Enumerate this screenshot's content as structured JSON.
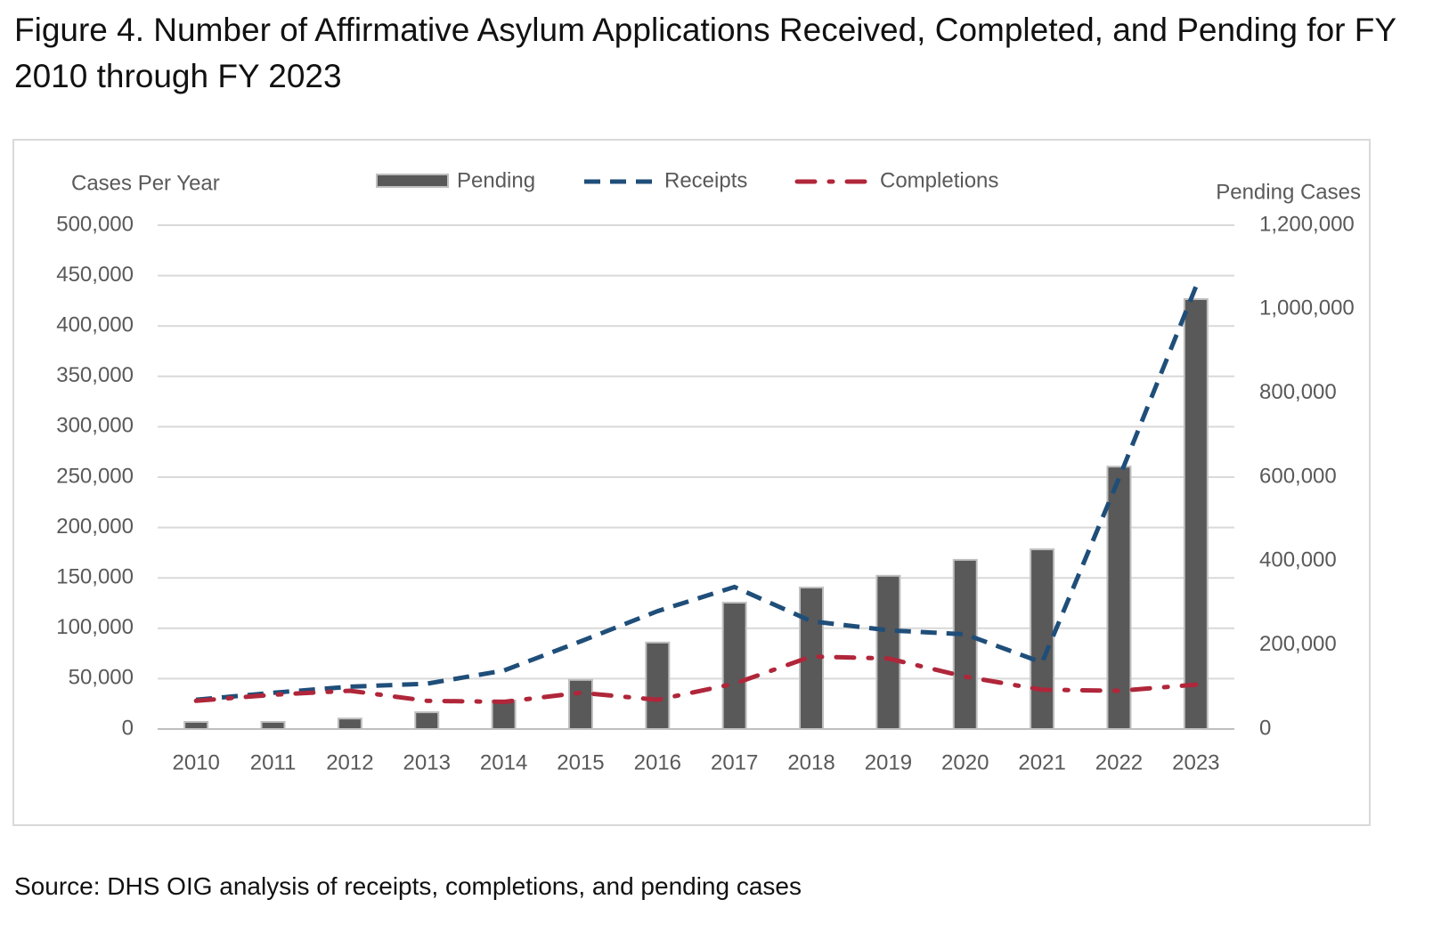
{
  "chart_data": {
    "type": "combo",
    "title": "Figure 4. Number of Affirmative Asylum Applications Received, Completed, and Pending for FY 2010 through FY 2023",
    "y_label": "Cases Per Year",
    "y2_label": "Pending Cases",
    "source": "Source: DHS OIG analysis of receipts, completions, and pending cases",
    "categories": [
      "2010",
      "2011",
      "2012",
      "2013",
      "2014",
      "2015",
      "2016",
      "2017",
      "2018",
      "2019",
      "2020",
      "2021",
      "2022",
      "2023"
    ],
    "series": [
      {
        "name": "Pending",
        "type": "bar",
        "axis": "y2",
        "color": "#595959",
        "values": [
          17000,
          17000,
          25000,
          40000,
          68000,
          117000,
          206000,
          301000,
          337000,
          365000,
          403000,
          428000,
          625000,
          1024000
        ]
      },
      {
        "name": "Receipts",
        "type": "line",
        "line_style": "dashed",
        "color": "#1f4e79",
        "values": [
          29000,
          36000,
          42000,
          45000,
          58000,
          87000,
          117000,
          141000,
          107000,
          98000,
          94000,
          66000,
          249000,
          439000
        ]
      },
      {
        "name": "Completions",
        "type": "line",
        "line_style": "dash-dot",
        "color": "#b0263a",
        "values": [
          28000,
          34000,
          38000,
          28000,
          27000,
          36000,
          29000,
          45000,
          72000,
          70000,
          52000,
          39000,
          38000,
          44000
        ]
      }
    ],
    "ylim": [
      0,
      500000
    ],
    "yticks": [
      0,
      {
        "value": 50000,
        "label": "50,000"
      },
      {
        "value": 100000,
        "label": "100,000"
      },
      {
        "value": 150000,
        "label": "150,000"
      },
      {
        "value": 200000,
        "label": "200,000"
      },
      {
        "value": 250000,
        "label": "250,000"
      },
      {
        "value": 300000,
        "label": "300,000"
      },
      {
        "value": 350000,
        "label": "350,000"
      },
      {
        "value": 400000,
        "label": "400,000"
      },
      {
        "value": 450000,
        "label": "450,000"
      },
      {
        "value": 500000,
        "label": "500,000"
      }
    ],
    "y2lim": [
      0,
      1200000
    ],
    "y2ticks": [
      0,
      {
        "value": 200000,
        "label": "200,000"
      },
      {
        "value": 400000,
        "label": "400,000"
      },
      {
        "value": 600000,
        "label": "600,000"
      },
      {
        "value": 800000,
        "label": "800,000"
      },
      {
        "value": 1000000,
        "label": "1,000,000"
      },
      {
        "value": 1200000,
        "label": "1,200,000"
      }
    ],
    "grid": true
  }
}
